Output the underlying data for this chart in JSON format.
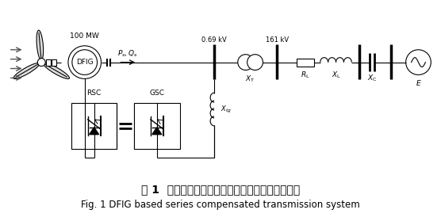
{
  "title_cn": "图 1  双馈风电机组经串联电容补偿并网系统结构图",
  "title_en": "Fig. 1 DFIG based series compensated transmission system",
  "bg_color": "#ffffff",
  "line_color": "#000000",
  "label_100mw": "100 MW",
  "label_069kv": "0.69 kV",
  "label_161kv": "161 kV",
  "label_ps_qs": "$P_s, Q_s$",
  "label_XT": "$X_{\\mathrm{T}}$",
  "label_RL": "$R_{\\mathrm{L}}$",
  "label_XL": "$X_{\\mathrm{L}}$",
  "label_XC": "$X_{\\mathrm{C}}$",
  "label_E": "$E$",
  "label_Xtg": "$X_{tg}$",
  "label_DFIG": "DFIG",
  "label_RSC": "RSC",
  "label_GSC": "GSC"
}
